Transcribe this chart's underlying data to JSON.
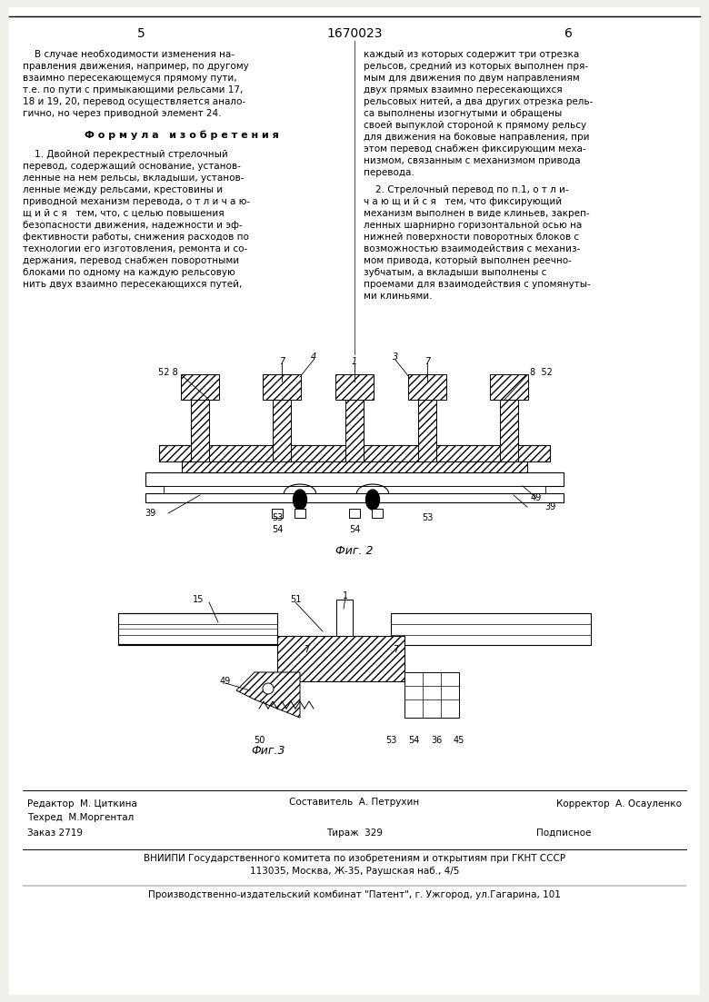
{
  "bg_color": "#f0f0eb",
  "page_color": "#ffffff",
  "patent_number": "1670023",
  "page_left": "5",
  "page_right": "6",
  "editor_line": "Редактор  М. Циткина",
  "composer_line": "Составитель  А. Петрухин",
  "techred_line": "Техред  М.Моргентал",
  "corrector_line": "Корректор  А. Осауленко",
  "order_line": "Заказ 2719",
  "tirazh_line": "Тираж  329",
  "podpisnoe_line": "Подписное",
  "vniiipi_line": "ВНИИПИ Государственного комитета по изобретениям и открытиям при ГКНТ СССР",
  "address_line": "113035, Москва, Ж-35, Раушская наб., 4/5",
  "patent_line": "Производственно-издательский комбинат \"Патент\", г. Ужгород, ул.Гагарина, 101"
}
